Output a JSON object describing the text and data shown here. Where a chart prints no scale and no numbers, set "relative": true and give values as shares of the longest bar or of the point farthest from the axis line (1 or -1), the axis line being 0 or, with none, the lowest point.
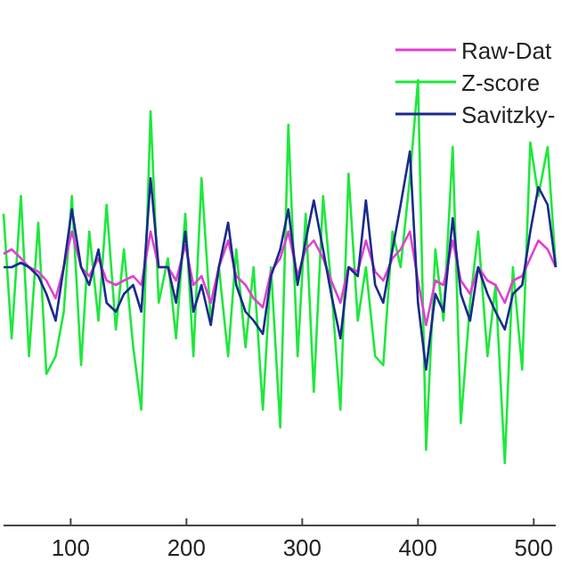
{
  "chart_data": {
    "type": "line",
    "relative": true,
    "x": [
      42,
      49,
      57,
      64,
      72,
      79,
      87,
      94,
      101,
      109,
      116,
      124,
      131,
      139,
      146,
      154,
      161,
      169,
      176,
      184,
      191,
      199,
      206,
      213,
      221,
      228,
      236,
      243,
      251,
      258,
      266,
      273,
      281,
      288,
      296,
      303,
      310,
      318,
      325,
      333,
      340,
      348,
      355,
      363,
      370,
      378,
      385,
      393,
      400,
      407,
      415,
      422,
      430,
      437,
      445,
      452,
      460,
      467,
      475,
      482,
      490,
      497,
      504,
      512,
      519
    ],
    "xlim": [
      42,
      519
    ],
    "xticks": [
      100,
      200,
      300,
      400,
      500
    ],
    "legend": "top right",
    "line_style": "solid",
    "marker": "none",
    "grid": false,
    "series": [
      {
        "name": "Z-score",
        "color": "#1ee83c",
        "values": [
          0.7,
          0.42,
          0.74,
          0.38,
          0.68,
          0.34,
          0.38,
          0.48,
          0.74,
          0.36,
          0.66,
          0.46,
          0.72,
          0.44,
          0.62,
          0.4,
          0.26,
          0.93,
          0.5,
          0.6,
          0.42,
          0.7,
          0.38,
          0.78,
          0.46,
          0.58,
          0.38,
          0.62,
          0.4,
          0.58,
          0.26,
          0.58,
          0.22,
          0.9,
          0.38,
          0.7,
          0.3,
          0.74,
          0.54,
          0.26,
          0.79,
          0.46,
          0.58,
          0.38,
          0.36,
          0.66,
          0.58,
          0.78,
          1.0,
          0.17,
          0.62,
          0.46,
          0.85,
          0.23,
          0.5,
          0.66,
          0.38,
          0.54,
          0.14,
          0.58,
          0.35,
          0.86,
          0.74,
          0.85,
          0.58
        ]
      },
      {
        "name": "Raw-Dat",
        "color": "#e040d0",
        "values": [
          0.61,
          0.62,
          0.6,
          0.58,
          0.57,
          0.55,
          0.51,
          0.58,
          0.66,
          0.58,
          0.56,
          0.6,
          0.55,
          0.54,
          0.55,
          0.56,
          0.54,
          0.66,
          0.58,
          0.58,
          0.55,
          0.63,
          0.54,
          0.56,
          0.5,
          0.58,
          0.64,
          0.56,
          0.54,
          0.51,
          0.49,
          0.57,
          0.6,
          0.66,
          0.56,
          0.62,
          0.64,
          0.6,
          0.55,
          0.5,
          0.58,
          0.57,
          0.64,
          0.57,
          0.55,
          0.6,
          0.62,
          0.66,
          0.55,
          0.45,
          0.55,
          0.54,
          0.64,
          0.55,
          0.52,
          0.58,
          0.55,
          0.54,
          0.5,
          0.55,
          0.56,
          0.6,
          0.64,
          0.62,
          0.58
        ]
      },
      {
        "name": "Savitzky-",
        "color": "#1a2a8c",
        "values": [
          0.58,
          0.58,
          0.59,
          0.58,
          0.56,
          0.52,
          0.46,
          0.58,
          0.71,
          0.58,
          0.54,
          0.62,
          0.5,
          0.48,
          0.52,
          0.54,
          0.48,
          0.78,
          0.58,
          0.58,
          0.5,
          0.66,
          0.48,
          0.54,
          0.45,
          0.58,
          0.68,
          0.54,
          0.48,
          0.46,
          0.43,
          0.56,
          0.62,
          0.71,
          0.54,
          0.64,
          0.73,
          0.62,
          0.52,
          0.42,
          0.58,
          0.56,
          0.73,
          0.54,
          0.5,
          0.62,
          0.72,
          0.84,
          0.5,
          0.35,
          0.52,
          0.48,
          0.69,
          0.52,
          0.46,
          0.58,
          0.52,
          0.48,
          0.44,
          0.52,
          0.54,
          0.66,
          0.76,
          0.72,
          0.58
        ]
      }
    ]
  }
}
